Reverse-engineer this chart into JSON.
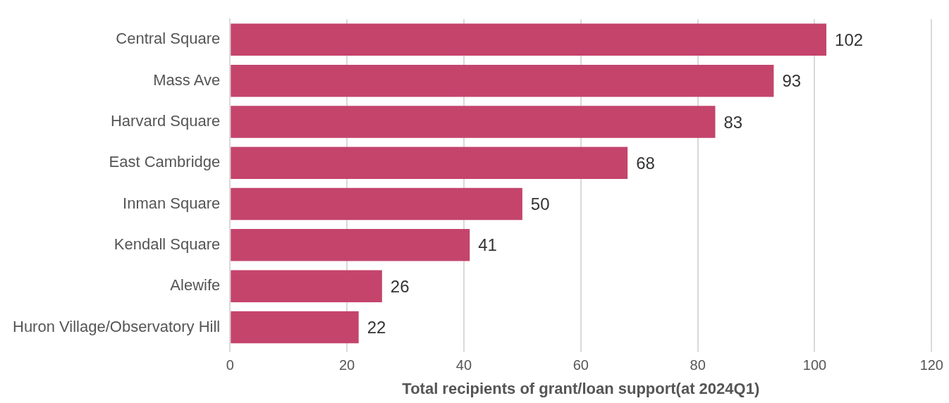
{
  "chart_data": {
    "type": "bar",
    "orientation": "horizontal",
    "xlabel": "Total recipients of grant/loan support(at 2024Q1)",
    "categories": [
      "Central Square",
      "Mass Ave",
      "Harvard Square",
      "East Cambridge",
      "Inman Square",
      "Kendall Square",
      "Alewife",
      "Huron Village/Observatory Hill"
    ],
    "values": [
      102,
      93,
      83,
      68,
      50,
      41,
      26,
      22
    ],
    "color": "#c4446c",
    "xlim": [
      0,
      120
    ],
    "xticks": [
      0,
      20,
      40,
      60,
      80,
      100,
      120
    ],
    "grid": "x",
    "data_labels": true,
    "legend": false
  }
}
